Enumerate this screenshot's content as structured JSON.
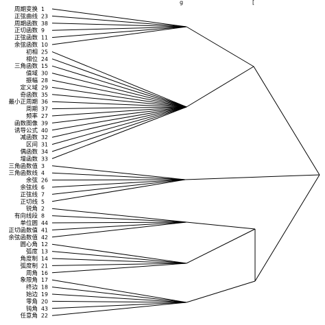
{
  "header_fragments": [
    "g",
    "["
  ],
  "dendrogram": {
    "line_color": "#000000",
    "leaves": [
      {
        "label": "周期变换",
        "id": "1"
      },
      {
        "label": "正弦曲线",
        "id": "23"
      },
      {
        "label": "周期函数",
        "id": "38"
      },
      {
        "label": "正切函数",
        "id": "9"
      },
      {
        "label": "正弦函数",
        "id": "11"
      },
      {
        "label": "余弦函数",
        "id": "10"
      },
      {
        "label": "初相",
        "id": "25"
      },
      {
        "label": "相位",
        "id": "24"
      },
      {
        "label": "三角函数",
        "id": "15"
      },
      {
        "label": "值域",
        "id": "30"
      },
      {
        "label": "振幅",
        "id": "28"
      },
      {
        "label": "定义域",
        "id": "29"
      },
      {
        "label": "奇函数",
        "id": "35"
      },
      {
        "label": "最小正周期",
        "id": "36"
      },
      {
        "label": "周期",
        "id": "37"
      },
      {
        "label": "频率",
        "id": "27"
      },
      {
        "label": "函数图像",
        "id": "39"
      },
      {
        "label": "诱导公式",
        "id": "40"
      },
      {
        "label": "减函数",
        "id": "32"
      },
      {
        "label": "区间",
        "id": "31"
      },
      {
        "label": "偶函数",
        "id": "34"
      },
      {
        "label": "增函数",
        "id": "33"
      },
      {
        "label": "三角函数值",
        "id": "3"
      },
      {
        "label": "三角函数线",
        "id": "4"
      },
      {
        "label": "余弦",
        "id": "26"
      },
      {
        "label": "余弦线",
        "id": "6"
      },
      {
        "label": "正弦线",
        "id": "7"
      },
      {
        "label": "正切线",
        "id": "5"
      },
      {
        "label": "锐角",
        "id": "2"
      },
      {
        "label": "有向线段",
        "id": "8"
      },
      {
        "label": "单位圆",
        "id": "44"
      },
      {
        "label": "正切函数值",
        "id": "41"
      },
      {
        "label": "余弦函数值",
        "id": "42"
      },
      {
        "label": "圆心角",
        "id": "12"
      },
      {
        "label": "弧度",
        "id": "13"
      },
      {
        "label": "角度制",
        "id": "14"
      },
      {
        "label": "弧度制",
        "id": "21"
      },
      {
        "label": "周角",
        "id": "16"
      },
      {
        "label": "象限角",
        "id": "17"
      },
      {
        "label": "终边",
        "id": "18"
      },
      {
        "label": "始边",
        "id": "19"
      },
      {
        "label": "零角",
        "id": "20"
      },
      {
        "label": "钝角",
        "id": "43"
      },
      {
        "label": "任意角",
        "id": "22"
      }
    ]
  }
}
